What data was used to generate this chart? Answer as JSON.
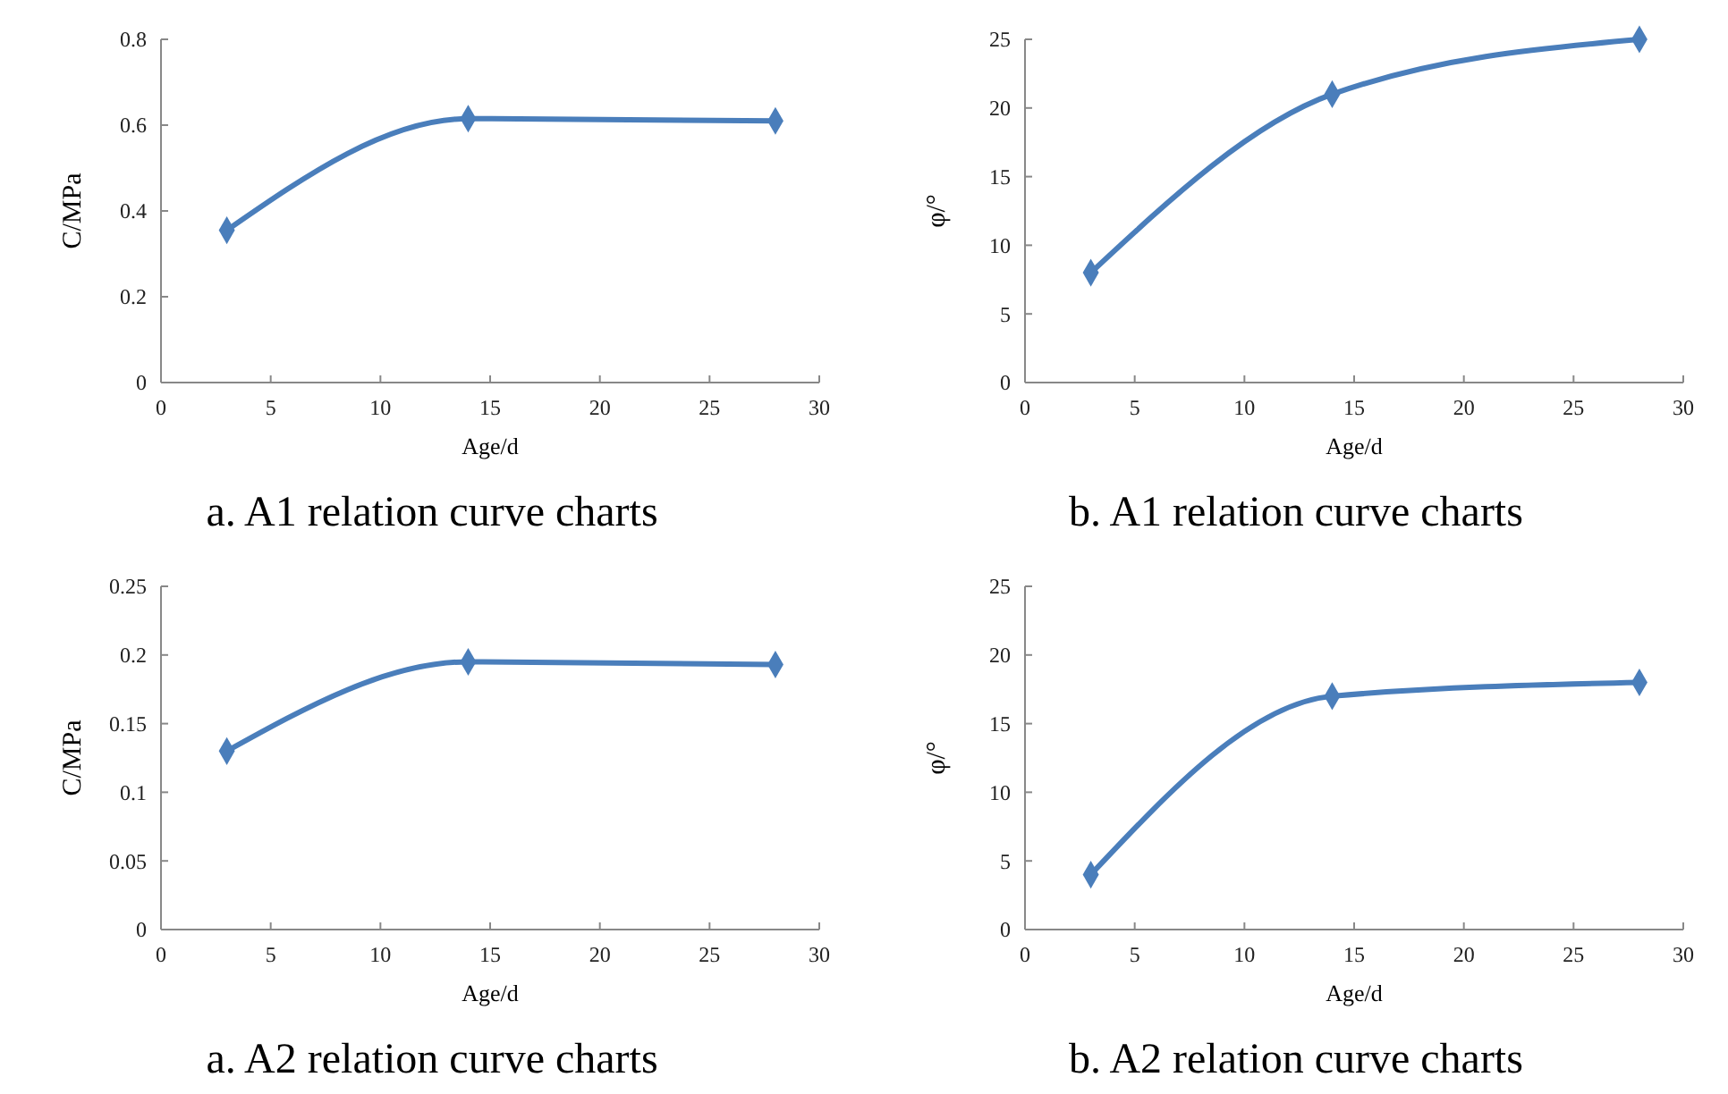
{
  "chart_data": [
    {
      "type": "line",
      "title": "a. A1 relation curve charts",
      "xlabel": "Age/d",
      "ylabel": "C/MPa",
      "x": [
        3,
        14,
        28
      ],
      "series": [
        {
          "color": "#4a7ebb",
          "values": [
            0.355,
            0.615,
            0.61
          ]
        }
      ],
      "xlim": [
        0,
        30
      ],
      "xticks": [
        0,
        5,
        10,
        15,
        20,
        25,
        30
      ],
      "ylim": [
        0,
        0.8
      ],
      "yticks": [
        0,
        0.2,
        0.4,
        0.6,
        0.8
      ],
      "marker": "diamond"
    },
    {
      "type": "line",
      "title": "b. A1 relation curve charts",
      "xlabel": "Age/d",
      "ylabel": "φ/°",
      "x": [
        3,
        14,
        28
      ],
      "series": [
        {
          "color": "#4a7ebb",
          "values": [
            8,
            21,
            25
          ]
        }
      ],
      "xlim": [
        0,
        30
      ],
      "xticks": [
        0,
        5,
        10,
        15,
        20,
        25,
        30
      ],
      "ylim": [
        0,
        25
      ],
      "yticks": [
        0,
        5,
        10,
        15,
        20,
        25
      ],
      "marker": "diamond"
    },
    {
      "type": "line",
      "title": "a. A2 relation curve charts",
      "xlabel": "Age/d",
      "ylabel": "C/MPa",
      "x": [
        3,
        14,
        28
      ],
      "series": [
        {
          "color": "#4a7ebb",
          "values": [
            0.13,
            0.195,
            0.193
          ]
        }
      ],
      "xlim": [
        0,
        30
      ],
      "xticks": [
        0,
        5,
        10,
        15,
        20,
        25,
        30
      ],
      "ylim": [
        0,
        0.25
      ],
      "yticks": [
        0,
        0.05,
        0.1,
        0.15,
        0.2,
        0.25
      ],
      "marker": "diamond"
    },
    {
      "type": "line",
      "title": "b. A2 relation curve charts",
      "xlabel": "Age/d",
      "ylabel": "φ/°",
      "x": [
        3,
        14,
        28
      ],
      "series": [
        {
          "color": "#4a7ebb",
          "values": [
            4,
            17,
            18
          ]
        }
      ],
      "xlim": [
        0,
        30
      ],
      "xticks": [
        0,
        5,
        10,
        15,
        20,
        25,
        30
      ],
      "ylim": [
        0,
        25
      ],
      "yticks": [
        0,
        5,
        10,
        15,
        20,
        25
      ],
      "marker": "diamond"
    }
  ]
}
